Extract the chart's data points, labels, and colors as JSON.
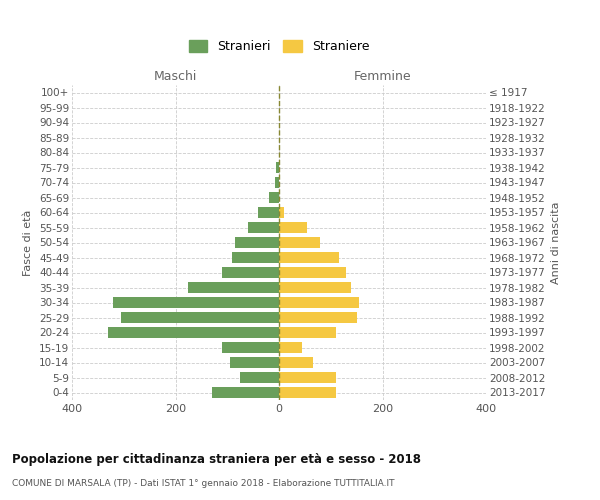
{
  "age_groups": [
    "0-4",
    "5-9",
    "10-14",
    "15-19",
    "20-24",
    "25-29",
    "30-34",
    "35-39",
    "40-44",
    "45-49",
    "50-54",
    "55-59",
    "60-64",
    "65-69",
    "70-74",
    "75-79",
    "80-84",
    "85-89",
    "90-94",
    "95-99",
    "100+"
  ],
  "birth_years": [
    "2013-2017",
    "2008-2012",
    "2003-2007",
    "1998-2002",
    "1993-1997",
    "1988-1992",
    "1983-1987",
    "1978-1982",
    "1973-1977",
    "1968-1972",
    "1963-1967",
    "1958-1962",
    "1953-1957",
    "1948-1952",
    "1943-1947",
    "1938-1942",
    "1933-1937",
    "1928-1932",
    "1923-1927",
    "1918-1922",
    "≤ 1917"
  ],
  "males": [
    130,
    75,
    95,
    110,
    330,
    305,
    320,
    175,
    110,
    90,
    85,
    60,
    40,
    20,
    8,
    5,
    0,
    0,
    0,
    0,
    0
  ],
  "females": [
    110,
    110,
    65,
    45,
    110,
    150,
    155,
    140,
    130,
    115,
    80,
    55,
    10,
    0,
    0,
    0,
    0,
    0,
    0,
    0,
    0
  ],
  "male_color": "#6a9f5b",
  "female_color": "#f5c842",
  "bg_color": "#ffffff",
  "grid_color": "#cccccc",
  "title": "Popolazione per cittadinanza straniera per età e sesso - 2018",
  "subtitle": "COMUNE DI MARSALA (TP) - Dati ISTAT 1° gennaio 2018 - Elaborazione TUTTITALIA.IT",
  "xlabel_left": "Maschi",
  "xlabel_right": "Femmine",
  "ylabel_left": "Fasce di età",
  "ylabel_right": "Anni di nascita",
  "legend_male": "Stranieri",
  "legend_female": "Straniere",
  "xlim": 400,
  "xticks": [
    -400,
    -200,
    0,
    200,
    400
  ],
  "bar_height": 0.75
}
